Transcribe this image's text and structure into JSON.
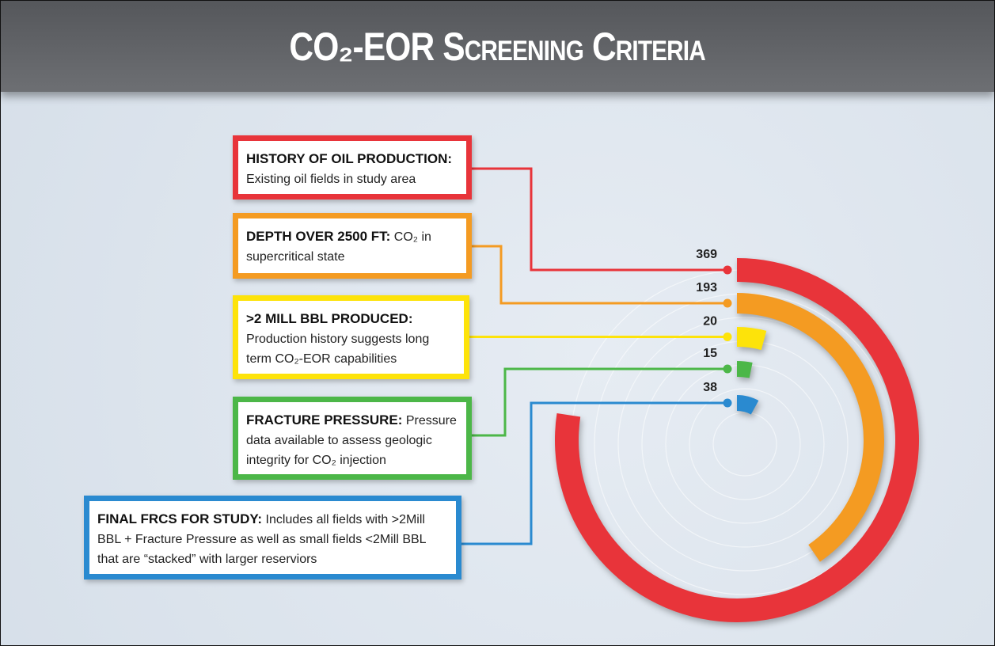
{
  "chart_data": {
    "type": "radial_bar",
    "title": "CO₂-EOR Screening Criteria",
    "categories": [
      "HISTORY OF OIL PRODUCTION:",
      "DEPTH OVER 2500 FT:",
      ">2 MILL BBL PRODUCED:",
      "FRACTURE PRESSURE:",
      "FINAL FRCS FOR STUDY:"
    ],
    "descriptions": [
      "Existing oil fields in study area",
      "CO₂ in supercritical state",
      "Production history suggests long term CO₂-EOR capabilities",
      "Pressure data available to assess geologic integrity for CO₂ injection",
      "Includes all fields with >2Mill BBL + Fracture Pressure as well as small fields <2Mill BBL that are “stacked” with larger reserviors"
    ],
    "values": [
      369,
      193,
      20,
      15,
      38
    ],
    "colors": [
      "#e8343a",
      "#f49b22",
      "#fde30a",
      "#4cb748",
      "#2a8ad0"
    ],
    "xlim": [
      0,
      477
    ]
  }
}
